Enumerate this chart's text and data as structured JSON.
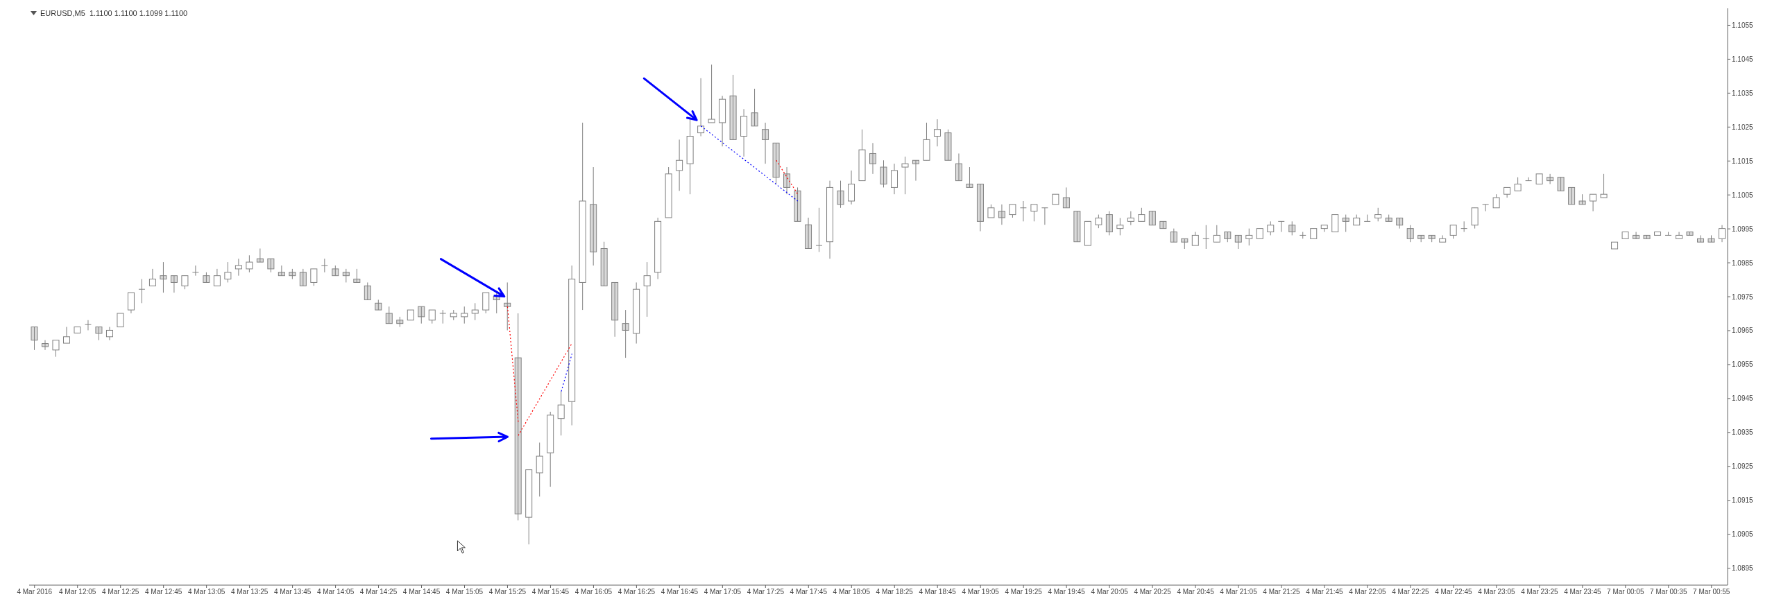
{
  "chart_data": {
    "type": "candlestick",
    "title": "EURUSD,M5  1.1100 1.1100 1.1099 1.1100",
    "color": "#808080",
    "categories": [
      "4 Mar 2016",
      null,
      null,
      null,
      "4 Mar 12:05",
      null,
      null,
      null,
      "4 Mar 12:25",
      null,
      null,
      null,
      "4 Mar 12:45",
      null,
      null,
      null,
      "4 Mar 13:05",
      null,
      null,
      null,
      "4 Mar 13:25",
      null,
      null,
      null,
      "4 Mar 13:45",
      null,
      null,
      null,
      "4 Mar 14:05",
      null,
      null,
      null,
      "4 Mar 14:25",
      null,
      null,
      null,
      "4 Mar 14:45",
      null,
      null,
      null,
      "4 Mar 15:05",
      null,
      null,
      null,
      "4 Mar 15:25",
      null,
      null,
      null,
      "4 Mar 15:45",
      null,
      null,
      null,
      "4 Mar 16:05",
      null,
      null,
      null,
      "4 Mar 16:25",
      null,
      null,
      null,
      "4 Mar 16:45",
      null,
      null,
      null,
      "4 Mar 17:05",
      null,
      null,
      null,
      "4 Mar 17:25",
      null,
      null,
      null,
      "4 Mar 17:45",
      null,
      null,
      null,
      "4 Mar 18:05",
      null,
      null,
      null,
      "4 Mar 18:25",
      null,
      null,
      null,
      "4 Mar 18:45",
      null,
      null,
      null,
      "4 Mar 19:05",
      null,
      null,
      null,
      "4 Mar 19:25",
      null,
      null,
      null,
      "4 Mar 19:45",
      null,
      null,
      null,
      "4 Mar 20:05",
      null,
      null,
      null,
      "4 Mar 20:25",
      null,
      null,
      null,
      "4 Mar 20:45",
      null,
      null,
      null,
      "4 Mar 21:05",
      null,
      null,
      null,
      "4 Mar 21:25",
      null,
      null,
      null,
      "4 Mar 21:45",
      null,
      null,
      null,
      "4 Mar 22:05",
      null,
      null,
      null,
      "4 Mar 22:25",
      null,
      null,
      null,
      "4 Mar 22:45",
      null,
      null,
      null,
      "4 Mar 23:05",
      null,
      null,
      null,
      "4 Mar 23:25",
      null,
      null,
      null,
      "4 Mar 23:45",
      null,
      null,
      null,
      "7 Mar 00:05",
      null,
      null,
      null,
      "7 Mar 00:35",
      null,
      null,
      null,
      "7 Mar 00:55",
      null
    ],
    "ohlc": [
      [
        1.09661,
        1.09661,
        1.09593,
        1.09622
      ],
      [
        1.09612,
        1.09622,
        1.09593,
        1.09603
      ],
      [
        1.09593,
        1.09622,
        1.09573,
        1.09622
      ],
      [
        1.09613,
        1.09661,
        1.09613,
        1.09632
      ],
      [
        1.09643,
        1.09661,
        1.09643,
        1.09661
      ],
      [
        1.09668,
        1.09681,
        1.09651,
        1.09668
      ],
      [
        1.09661,
        1.09661,
        1.09622,
        1.09642
      ],
      [
        1.09632,
        1.09661,
        1.09622,
        1.09651
      ],
      [
        1.09661,
        1.09701,
        1.09661,
        1.09701
      ],
      [
        1.09711,
        1.09762,
        1.09701,
        1.09762
      ],
      [
        1.09772,
        1.09802,
        1.09731,
        1.09772
      ],
      [
        1.09782,
        1.09832,
        1.09782,
        1.09802
      ],
      [
        1.09812,
        1.09852,
        1.09762,
        1.09802
      ],
      [
        1.09812,
        1.09812,
        1.09762,
        1.09792
      ],
      [
        1.09782,
        1.09812,
        1.09772,
        1.09812
      ],
      [
        1.09822,
        1.09842,
        1.09812,
        1.09822
      ],
      [
        1.09812,
        1.09822,
        1.09792,
        1.09792
      ],
      [
        1.09782,
        1.09832,
        1.09782,
        1.09812
      ],
      [
        1.09802,
        1.09852,
        1.09792,
        1.09822
      ],
      [
        1.09832,
        1.09862,
        1.09812,
        1.09842
      ],
      [
        1.09832,
        1.09872,
        1.09822,
        1.09852
      ],
      [
        1.09862,
        1.09892,
        1.09852,
        1.09852
      ],
      [
        1.09862,
        1.09862,
        1.09822,
        1.09832
      ],
      [
        1.09822,
        1.09842,
        1.09812,
        1.09812
      ],
      [
        1.09822,
        1.09832,
        1.09802,
        1.09812
      ],
      [
        1.09822,
        1.09832,
        1.09782,
        1.09782
      ],
      [
        1.09792,
        1.09832,
        1.09782,
        1.09832
      ],
      [
        1.09842,
        1.09862,
        1.09822,
        1.09842
      ],
      [
        1.09832,
        1.09842,
        1.09812,
        1.09812
      ],
      [
        1.09822,
        1.09832,
        1.09792,
        1.09812
      ],
      [
        1.09802,
        1.09832,
        1.09792,
        1.09792
      ],
      [
        1.09782,
        1.09792,
        1.09741,
        1.09741
      ],
      [
        1.09731,
        1.09741,
        1.09711,
        1.09711
      ],
      [
        1.09701,
        1.09721,
        1.09671,
        1.09671
      ],
      [
        1.09681,
        1.09691,
        1.09661,
        1.09671
      ],
      [
        1.09681,
        1.09711,
        1.09681,
        1.09711
      ],
      [
        1.09721,
        1.09721,
        1.09671,
        1.09691
      ],
      [
        1.09681,
        1.09711,
        1.09671,
        1.09711
      ],
      [
        1.09701,
        1.09711,
        1.09671,
        1.09701
      ],
      [
        1.09691,
        1.09711,
        1.09681,
        1.09701
      ],
      [
        1.09691,
        1.09721,
        1.09671,
        1.09701
      ],
      [
        1.09701,
        1.09731,
        1.09681,
        1.09711
      ],
      [
        1.09711,
        1.09762,
        1.09701,
        1.09762
      ],
      [
        1.09751,
        1.09762,
        1.09701,
        1.09741
      ],
      [
        1.09731,
        1.09792,
        1.09651,
        1.09721
      ],
      [
        1.0957,
        1.09701,
        1.09091,
        1.0911
      ],
      [
        1.091,
        1.0924,
        1.0902,
        1.0924
      ],
      [
        1.09231,
        1.0932,
        1.09161,
        1.0928
      ],
      [
        1.0929,
        1.09411,
        1.0919,
        1.09401
      ],
      [
        1.09391,
        1.09471,
        1.09341,
        1.09431
      ],
      [
        1.09441,
        1.09842,
        1.09371,
        1.09802
      ],
      [
        1.09792,
        1.10263,
        1.09711,
        1.10032
      ],
      [
        1.10022,
        1.10132,
        1.09842,
        1.09882
      ],
      [
        1.09892,
        1.09912,
        1.09782,
        1.09782
      ],
      [
        1.09792,
        1.09792,
        1.09632,
        1.09681
      ],
      [
        1.09671,
        1.09711,
        1.0957,
        1.09651
      ],
      [
        1.09642,
        1.09792,
        1.09612,
        1.09772
      ],
      [
        1.09782,
        1.09852,
        1.09691,
        1.09812
      ],
      [
        1.09822,
        1.09983,
        1.09802,
        1.09972
      ],
      [
        1.09983,
        1.10132,
        1.09983,
        1.10112
      ],
      [
        1.10122,
        1.10213,
        1.10062,
        1.10152
      ],
      [
        1.10142,
        1.10273,
        1.10052,
        1.10223
      ],
      [
        1.10233,
        1.10394,
        1.10223,
        1.10253
      ],
      [
        1.10263,
        1.10434,
        1.10263,
        1.10273
      ],
      [
        1.10263,
        1.10342,
        1.10193,
        1.10332
      ],
      [
        1.10342,
        1.10404,
        1.10213,
        1.10213
      ],
      [
        1.10223,
        1.10303,
        1.10163,
        1.10282
      ],
      [
        1.10292,
        1.10363,
        1.10253,
        1.10253
      ],
      [
        1.10243,
        1.10263,
        1.10142,
        1.10213
      ],
      [
        1.10203,
        1.10203,
        1.10082,
        1.10102
      ],
      [
        1.10112,
        1.10132,
        1.10052,
        1.10072
      ],
      [
        1.10062,
        1.10072,
        1.09972,
        1.09972
      ],
      [
        1.09962,
        1.09983,
        1.09892,
        1.09892
      ],
      [
        1.09901,
        1.10012,
        1.09882,
        1.09901
      ],
      [
        1.09912,
        1.10092,
        1.09862,
        1.10072
      ],
      [
        1.10062,
        1.10092,
        1.10012,
        1.10022
      ],
      [
        1.10032,
        1.10122,
        1.10022,
        1.10082
      ],
      [
        1.10092,
        1.10243,
        1.10092,
        1.10183
      ],
      [
        1.10172,
        1.10203,
        1.10112,
        1.10142
      ],
      [
        1.10132,
        1.10152,
        1.10072,
        1.10082
      ],
      [
        1.10072,
        1.10142,
        1.10052,
        1.10122
      ],
      [
        1.10132,
        1.10163,
        1.10052,
        1.10142
      ],
      [
        1.10152,
        1.10152,
        1.10092,
        1.10142
      ],
      [
        1.10152,
        1.10263,
        1.10152,
        1.10213
      ],
      [
        1.10223,
        1.10273,
        1.10193,
        1.10243
      ],
      [
        1.10233,
        1.10243,
        1.10152,
        1.10152
      ],
      [
        1.10142,
        1.10172,
        1.10092,
        1.10092
      ],
      [
        1.10082,
        1.10132,
        1.10072,
        1.10072
      ],
      [
        1.10082,
        1.10082,
        1.09943,
        1.09972
      ],
      [
        1.09983,
        1.10022,
        1.09983,
        1.10012
      ],
      [
        1.10002,
        1.10022,
        1.09962,
        1.09983
      ],
      [
        1.09992,
        1.10022,
        1.09983,
        1.10022
      ],
      [
        1.10012,
        1.10032,
        1.09972,
        1.10012
      ],
      [
        1.10002,
        1.10022,
        1.09972,
        1.10022
      ],
      [
        1.10012,
        1.10012,
        1.09962,
        1.10012
      ],
      [
        1.10022,
        1.10052,
        1.10022,
        1.10052
      ],
      [
        1.10042,
        1.10072,
        1.10012,
        1.10012
      ],
      [
        1.10002,
        1.10002,
        1.09912,
        1.09912
      ],
      [
        1.09901,
        1.09972,
        1.09901,
        1.09972
      ],
      [
        1.09962,
        1.09992,
        1.09952,
        1.09982
      ],
      [
        1.09992,
        1.10002,
        1.09931,
        1.09941
      ],
      [
        1.09951,
        1.09982,
        1.09931,
        1.09961
      ],
      [
        1.09972,
        1.10002,
        1.09961,
        1.09982
      ],
      [
        1.09972,
        1.10012,
        1.09972,
        1.09992
      ],
      [
        1.10002,
        1.10002,
        1.09961,
        1.09961
      ],
      [
        1.09972,
        1.09972,
        1.09951,
        1.09951
      ],
      [
        1.09941,
        1.09951,
        1.09911,
        1.09911
      ],
      [
        1.09921,
        1.09921,
        1.09891,
        1.09911
      ],
      [
        1.09901,
        1.09941,
        1.09901,
        1.09931
      ],
      [
        1.09921,
        1.09961,
        1.09891,
        1.09921
      ],
      [
        1.09911,
        1.09961,
        1.09911,
        1.09931
      ],
      [
        1.09941,
        1.09941,
        1.09911,
        1.09921
      ],
      [
        1.09931,
        1.09931,
        1.09891,
        1.09911
      ],
      [
        1.09921,
        1.09951,
        1.09901,
        1.09931
      ],
      [
        1.09921,
        1.09951,
        1.09921,
        1.09951
      ],
      [
        1.09941,
        1.09972,
        1.09931,
        1.09961
      ],
      [
        1.09972,
        1.09972,
        1.09941,
        1.09972
      ],
      [
        1.09961,
        1.09972,
        1.09931,
        1.09941
      ],
      [
        1.09931,
        1.09941,
        1.09921,
        1.09931
      ],
      [
        1.09921,
        1.09951,
        1.09921,
        1.09951
      ],
      [
        1.09951,
        1.09961,
        1.09941,
        1.09961
      ],
      [
        1.09941,
        1.09992,
        1.09941,
        1.09992
      ],
      [
        1.09982,
        1.09992,
        1.09941,
        1.09972
      ],
      [
        1.09961,
        1.09992,
        1.09961,
        1.09982
      ],
      [
        1.09972,
        1.09992,
        1.09972,
        1.09972
      ],
      [
        1.09982,
        1.10012,
        1.09972,
        1.09992
      ],
      [
        1.09982,
        1.09992,
        1.09972,
        1.09972
      ],
      [
        1.09982,
        1.09982,
        1.09951,
        1.09961
      ],
      [
        1.09951,
        1.09961,
        1.09911,
        1.09921
      ],
      [
        1.09931,
        1.09931,
        1.09911,
        1.09921
      ],
      [
        1.09931,
        1.09931,
        1.09911,
        1.09921
      ],
      [
        1.09911,
        1.09931,
        1.09911,
        1.09921
      ],
      [
        1.09931,
        1.09961,
        1.09921,
        1.09961
      ],
      [
        1.09951,
        1.09972,
        1.09941,
        1.09951
      ],
      [
        1.09961,
        1.10012,
        1.09951,
        1.10012
      ],
      [
        1.10022,
        1.10022,
        1.10002,
        1.10022
      ],
      [
        1.10012,
        1.10052,
        1.10012,
        1.10042
      ],
      [
        1.10052,
        1.10072,
        1.10042,
        1.10072
      ],
      [
        1.10062,
        1.10102,
        1.10062,
        1.10082
      ],
      [
        1.10092,
        1.10102,
        1.10092,
        1.10092
      ],
      [
        1.10082,
        1.10112,
        1.10082,
        1.10112
      ],
      [
        1.10102,
        1.10112,
        1.10082,
        1.10092
      ],
      [
        1.10102,
        1.10102,
        1.10062,
        1.10062
      ],
      [
        1.10072,
        1.10072,
        1.10022,
        1.10022
      ],
      [
        1.10032,
        1.10052,
        1.10022,
        1.10022
      ],
      [
        1.10032,
        1.10052,
        1.10002,
        1.10052
      ],
      [
        1.10042,
        1.10112,
        1.10042,
        1.10052
      ],
      [
        1.09891,
        1.09911,
        1.09891,
        1.09911
      ],
      [
        1.09921,
        1.09941,
        1.09921,
        1.09941
      ],
      [
        1.09931,
        1.09941,
        1.09921,
        1.09921
      ],
      [
        1.09931,
        1.09931,
        1.09921,
        1.09921
      ],
      [
        1.09931,
        1.09941,
        1.09931,
        1.09941
      ],
      [
        1.09931,
        1.09941,
        1.09931,
        1.09931
      ],
      [
        1.09921,
        1.09941,
        1.09921,
        1.09931
      ],
      [
        1.09941,
        1.09941,
        1.09931,
        1.09931
      ],
      [
        1.09921,
        1.09931,
        1.09911,
        1.09911
      ],
      [
        1.09921,
        1.09931,
        1.09911,
        1.09911
      ],
      [
        1.09921,
        1.09961,
        1.09911,
        1.09951
      ]
    ],
    "series": [
      {
        "type": "line",
        "color": "#ff0000",
        "line_style": "dotted",
        "values": [
          null,
          null,
          null,
          null,
          null,
          null,
          null,
          null,
          null,
          null,
          null,
          null,
          null,
          null,
          null,
          null,
          null,
          null,
          null,
          null,
          null,
          null,
          null,
          null,
          null,
          null,
          null,
          null,
          null,
          null,
          null,
          null,
          null,
          null,
          null,
          null,
          null,
          null,
          null,
          null,
          null,
          null,
          null,
          null,
          1.09721,
          1.0938,
          null,
          null,
          null,
          null,
          null,
          null,
          null,
          null,
          null,
          null,
          null,
          null,
          null,
          null,
          null,
          null,
          null,
          null,
          null,
          null,
          null,
          null,
          null,
          null,
          null,
          null,
          null,
          null,
          null,
          null,
          null,
          null,
          null,
          null,
          null,
          null,
          null,
          null,
          null,
          null,
          null,
          null,
          null,
          null,
          null,
          null,
          null,
          null,
          null,
          null,
          null,
          null,
          null,
          null,
          null,
          null,
          null,
          null,
          null,
          null,
          null,
          null,
          null,
          null,
          null,
          null,
          null,
          null,
          null,
          null,
          null,
          null,
          null,
          null,
          null,
          null,
          null,
          null,
          null,
          null,
          null,
          null,
          null,
          null,
          null,
          null,
          null,
          null,
          null,
          null,
          null,
          null,
          null,
          null,
          null,
          null,
          null,
          null,
          null,
          null,
          null,
          null,
          null,
          null,
          null,
          null,
          null,
          null,
          null,
          null,
          null,
          null
        ]
      },
      {
        "type": "line",
        "color": "#ff0000",
        "line_style": "dotted",
        "values": [
          null,
          null,
          null,
          null,
          null,
          null,
          null,
          null,
          null,
          null,
          null,
          null,
          null,
          null,
          null,
          null,
          null,
          null,
          null,
          null,
          null,
          null,
          null,
          null,
          null,
          null,
          null,
          null,
          null,
          null,
          null,
          null,
          null,
          null,
          null,
          null,
          null,
          null,
          null,
          null,
          null,
          null,
          null,
          null,
          null,
          1.09341,
          null,
          null,
          null,
          null,
          1.09613,
          null,
          null,
          null,
          null,
          null,
          null,
          null,
          null,
          null,
          null,
          null,
          null,
          null,
          null,
          null,
          null,
          null,
          null,
          null,
          null,
          null,
          null,
          null,
          null,
          null,
          null,
          null,
          null,
          null,
          null,
          null,
          null,
          null,
          null,
          null,
          null,
          null,
          null,
          null,
          null,
          null,
          null,
          null,
          null,
          null,
          null,
          null,
          null,
          null,
          null,
          null,
          null,
          null,
          null,
          null,
          null,
          null,
          null,
          null,
          null,
          null,
          null,
          null,
          null,
          null,
          null,
          null,
          null,
          null,
          null,
          null,
          null,
          null,
          null,
          null,
          null,
          null,
          null,
          null,
          null,
          null,
          null,
          null,
          null,
          null,
          null,
          null,
          null,
          null,
          null,
          null,
          null,
          null,
          null,
          null,
          null,
          null,
          null,
          null,
          null,
          null,
          null,
          null,
          null,
          null,
          null,
          null
        ]
      },
      {
        "type": "line",
        "color": "#0000ff",
        "line_style": "dotted",
        "values": [
          null,
          null,
          null,
          null,
          null,
          null,
          null,
          null,
          null,
          null,
          null,
          null,
          null,
          null,
          null,
          null,
          null,
          null,
          null,
          null,
          null,
          null,
          null,
          null,
          null,
          null,
          null,
          null,
          null,
          null,
          null,
          null,
          null,
          null,
          null,
          null,
          null,
          null,
          null,
          null,
          null,
          null,
          null,
          null,
          null,
          null,
          null,
          null,
          null,
          1.09471,
          1.09582,
          null,
          null,
          null,
          null,
          null,
          null,
          null,
          null,
          null,
          null,
          null,
          null,
          null,
          null,
          null,
          null,
          null,
          null,
          null,
          null,
          null,
          null,
          null,
          null,
          null,
          null,
          null,
          null,
          null,
          null,
          null,
          null,
          null,
          null,
          null,
          null,
          null,
          null,
          null,
          null,
          null,
          null,
          null,
          null,
          null,
          null,
          null,
          null,
          null,
          null,
          null,
          null,
          null,
          null,
          null,
          null,
          null,
          null,
          null,
          null,
          null,
          null,
          null,
          null,
          null,
          null,
          null,
          null,
          null,
          null,
          null,
          null,
          null,
          null,
          null,
          null,
          null,
          null,
          null,
          null,
          null,
          null,
          null,
          null,
          null,
          null,
          null,
          null,
          null,
          null,
          null,
          null,
          null,
          null,
          null,
          null,
          null,
          null,
          null,
          null,
          null,
          null,
          null,
          null,
          null,
          null,
          null
        ]
      },
      {
        "type": "line",
        "color": "#0000ff",
        "line_style": "dotted",
        "values": [
          null,
          null,
          null,
          null,
          null,
          null,
          null,
          null,
          null,
          null,
          null,
          null,
          null,
          null,
          null,
          null,
          null,
          null,
          null,
          null,
          null,
          null,
          null,
          null,
          null,
          null,
          null,
          null,
          null,
          null,
          null,
          null,
          null,
          null,
          null,
          null,
          null,
          null,
          null,
          null,
          null,
          null,
          null,
          null,
          null,
          null,
          null,
          null,
          null,
          null,
          null,
          null,
          null,
          null,
          null,
          null,
          null,
          null,
          null,
          null,
          null,
          null,
          1.10253,
          null,
          null,
          null,
          null,
          null,
          null,
          null,
          null,
          1.10032,
          null,
          null,
          null,
          null,
          null,
          null,
          null,
          null,
          null,
          null,
          null,
          null,
          null,
          null,
          null,
          null,
          null,
          null,
          null,
          null,
          null,
          null,
          null,
          null,
          null,
          null,
          null,
          null,
          null,
          null,
          null,
          null,
          null,
          null,
          null,
          null,
          null,
          null,
          null,
          null,
          null,
          null,
          null,
          null,
          null,
          null,
          null,
          null,
          null,
          null,
          null,
          null,
          null,
          null,
          null,
          null,
          null,
          null,
          null,
          null,
          null,
          null,
          null,
          null,
          null,
          null,
          null,
          null,
          null,
          null,
          null,
          null,
          null,
          null,
          null,
          null,
          null,
          null,
          null,
          null,
          null,
          null,
          null,
          null,
          null,
          null
        ]
      },
      {
        "type": "line",
        "color": "#ff0000",
        "line_style": "dotted",
        "values": [
          null,
          null,
          null,
          null,
          null,
          null,
          null,
          null,
          null,
          null,
          null,
          null,
          null,
          null,
          null,
          null,
          null,
          null,
          null,
          null,
          null,
          null,
          null,
          null,
          null,
          null,
          null,
          null,
          null,
          null,
          null,
          null,
          null,
          null,
          null,
          null,
          null,
          null,
          null,
          null,
          null,
          null,
          null,
          null,
          null,
          null,
          null,
          null,
          null,
          null,
          null,
          null,
          null,
          null,
          null,
          null,
          null,
          null,
          null,
          null,
          null,
          null,
          null,
          null,
          null,
          null,
          null,
          null,
          null,
          1.10152,
          null,
          1.10052,
          null,
          null,
          null,
          null,
          null,
          null,
          null,
          null,
          null,
          null,
          null,
          null,
          null,
          null,
          null,
          null,
          null,
          null,
          null,
          null,
          null,
          null,
          null,
          null,
          null,
          null,
          null,
          null,
          null,
          null,
          null,
          null,
          null,
          null,
          null,
          null,
          null,
          null,
          null,
          null,
          null,
          null,
          null,
          null,
          null,
          null,
          null,
          null,
          null,
          null,
          null,
          null,
          null,
          null,
          null,
          null,
          null,
          null,
          null,
          null,
          null,
          null,
          null,
          null,
          null,
          null,
          null,
          null,
          null,
          null,
          null,
          null,
          null,
          null,
          null,
          null,
          null,
          null,
          null,
          null,
          null,
          null,
          null,
          null,
          null,
          null
        ]
      }
    ],
    "ylim": [
      1.089,
      1.106
    ],
    "yticks": [
      1.0895,
      1.0905,
      1.0915,
      1.0925,
      1.0935,
      1.0945,
      1.0955,
      1.0965,
      1.0975,
      1.0985,
      1.0995,
      1.1005,
      1.1015,
      1.1025,
      1.1035,
      1.1045,
      1.1055
    ]
  }
}
